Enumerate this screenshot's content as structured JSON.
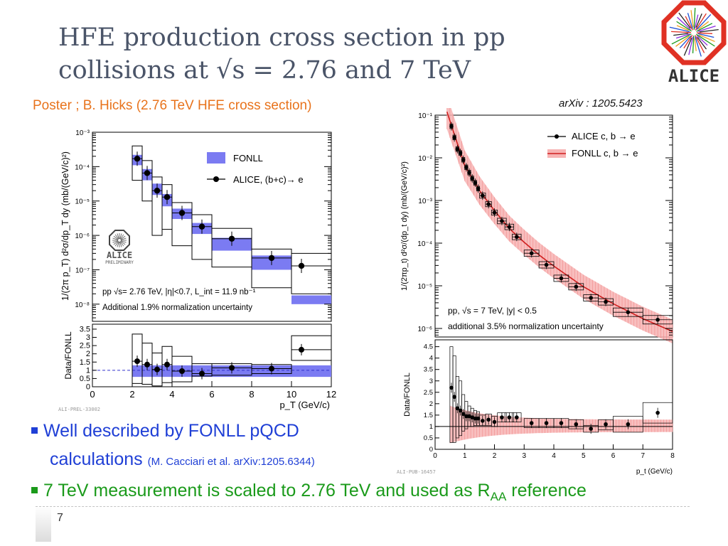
{
  "slide": {
    "title_line1": "HFE production cross section in pp",
    "title_line2": "collisions at √s = 2.76 and 7 TeV",
    "poster_credit": "Poster ; B. Hicks (2.76 TeV HFE cross section)",
    "arxiv_ref": "arXiv : 1205.5423",
    "logo_text": "ALICE",
    "bullets": [
      {
        "text": "Well described by FONLL pQCD",
        "text_cont": "calculations",
        "citation": "(M. Cacciari et al. arXiv:1205.6344)",
        "color": "#1f3fd6"
      },
      {
        "text": "7 TeV measurement is scaled to 2.76 TeV and used as R",
        "sub": "AA",
        "text_end": " reference",
        "color": "#1a9a1a"
      }
    ],
    "page_number": "7"
  },
  "chart_data": [
    {
      "type": "scatter",
      "id": "left-cross-section",
      "ylabel": "1/(2π p_T) d²σ/dp_T dy (mb/(GeV/c)²)",
      "xlim": [
        0,
        12
      ],
      "ylim_log10": [
        -8.5,
        -3
      ],
      "yticks": [
        "10⁻³",
        "10⁻⁴",
        "10⁻⁵",
        "10⁻⁶",
        "10⁻⁷",
        "10⁻⁸"
      ],
      "legend": [
        "FONLL",
        "ALICE, (b+c)→ e"
      ],
      "watermark": "ALICE",
      "watermark_sub": "PRELIMINARY",
      "annotation_1": "pp √s= 2.76 TeV, |η|<0.7, L_int = 11.9 nb⁻¹",
      "annotation_2": "Additional 1.9% normalization uncertainty",
      "series": [
        {
          "name": "ALICE, (b+c)→ e",
          "x": [
            2.25,
            2.75,
            3.25,
            3.75,
            4.5,
            5.5,
            7.0,
            9.0,
            12.0
          ],
          "x_low": [
            2.0,
            2.5,
            3.0,
            3.5,
            4.0,
            5.0,
            6.0,
            8.0,
            10.0
          ],
          "x_high": [
            2.5,
            3.0,
            3.5,
            4.0,
            5.0,
            6.0,
            8.0,
            10.0,
            14.0
          ],
          "y": [
            0.00017,
            6.5e-05,
            2e-05,
            1.3e-05,
            4.5e-06,
            1.8e-06,
            8e-07,
            2.2e-07,
            1.3e-07
          ],
          "sys_low": [
            4e-05,
            1e-05,
            1e-06,
            1.5e-06,
            5e-07,
            2e-07,
            1.2e-07,
            3e-08,
            2e-08
          ],
          "sys_high": [
            0.0004,
            0.00015,
            5e-05,
            3e-05,
            9e-06,
            4e-06,
            1.6e-06,
            4e-07,
            3e-07
          ],
          "fonll_low": [
            0.00011,
            4e-05,
            1.5e-05,
            7e-06,
            3e-06,
            1.1e-06,
            3.6e-07,
            1e-07,
            1e-08
          ],
          "fonll_high": [
            0.00022,
            8.5e-05,
            3.2e-05,
            1.6e-05,
            6e-06,
            2.3e-06,
            8.5e-07,
            2.6e-07,
            1.8e-08
          ]
        }
      ]
    },
    {
      "type": "scatter",
      "id": "left-ratio",
      "ylabel": "Data/FONLL",
      "xlabel": "p_T (GeV/c)",
      "xlim": [
        0,
        12
      ],
      "ylim": [
        0,
        3.8
      ],
      "xticks": [
        "0",
        "2",
        "4",
        "6",
        "8",
        "10",
        "12"
      ],
      "yticks": [
        "0",
        "0.5",
        "1",
        "1.5",
        "2",
        "2.5",
        "3",
        "3.5"
      ],
      "series": [
        {
          "name": "Data/FONLL",
          "x": [
            2.25,
            2.75,
            3.25,
            3.75,
            4.5,
            5.5,
            7.0,
            9.0,
            12.0
          ],
          "y": [
            1.55,
            1.35,
            1.05,
            1.35,
            0.95,
            0.8,
            1.15,
            1.1,
            2.25
          ],
          "sys_low": [
            0.2,
            0.15,
            0.05,
            0.25,
            0.3,
            0.65,
            0.7,
            0.8,
            1.6
          ],
          "sys_high": [
            3.2,
            2.65,
            2.05,
            2.45,
            1.85,
            1.4,
            1.4,
            1.35,
            3.1
          ],
          "x_low": [
            2.0,
            2.5,
            3.0,
            3.5,
            4.0,
            5.0,
            6.0,
            8.0,
            10.0
          ],
          "x_high": [
            2.5,
            3.0,
            3.5,
            4.0,
            5.0,
            6.0,
            8.0,
            10.0,
            14.0
          ],
          "band_low": 0.6,
          "band_high": 1.3,
          "ref": 1.0
        }
      ],
      "footer_tag": "ALI-PREL-33002"
    },
    {
      "type": "scatter",
      "id": "right-cross-section",
      "ylabel": "1/(2πp_t) d²σ/(dp_t dy) (mb/(GeV/c)²)",
      "xlim": [
        0,
        8
      ],
      "ylim_log10": [
        -6.2,
        -1
      ],
      "yticks": [
        "10⁻¹",
        "10⁻²",
        "10⁻³",
        "10⁻⁴",
        "10⁻⁵",
        "10⁻⁶"
      ],
      "legend": [
        "ALICE c, b → e",
        "FONLL c, b → e"
      ],
      "annotation_1": "pp, √s = 7 TeV, |y| < 0.5",
      "annotation_2": "additional 3.5% normalization uncertainty",
      "series": [
        {
          "name": "ALICE c, b → e",
          "x": [
            0.55,
            0.65,
            0.75,
            0.85,
            0.95,
            1.05,
            1.15,
            1.25,
            1.35,
            1.45,
            1.6,
            1.8,
            2.0,
            2.25,
            2.5,
            2.75,
            3.25,
            3.75,
            4.25,
            4.75,
            5.25,
            5.75,
            6.5,
            7.5
          ],
          "y": [
            0.055,
            0.03,
            0.016,
            0.013,
            0.009,
            0.006,
            0.0045,
            0.0033,
            0.0026,
            0.0019,
            0.0013,
            0.00082,
            0.00052,
            0.00033,
            0.00024,
            0.00014,
            5.8e-05,
            3.1e-05,
            1.5e-05,
            9.5e-06,
            5.2e-06,
            4.2e-06,
            2.4e-06,
            1.6e-06
          ],
          "width": [
            0.05,
            0.05,
            0.05,
            0.05,
            0.05,
            0.05,
            0.05,
            0.05,
            0.05,
            0.05,
            0.1,
            0.1,
            0.1,
            0.15,
            0.15,
            0.15,
            0.25,
            0.25,
            0.25,
            0.25,
            0.25,
            0.25,
            0.5,
            0.5
          ],
          "fonll_center_x": [
            0.4,
            0.6,
            1.0,
            1.5,
            2.0,
            2.5,
            3.0,
            3.5,
            4.0,
            5.0,
            6.0,
            7.0,
            8.0
          ],
          "fonll_center_y": [
            0.12,
            0.045,
            0.0065,
            0.0017,
            0.00058,
            0.00022,
            0.000105,
            5.3e-05,
            2.9e-05,
            9.5e-06,
            3.8e-06,
            1.7e-06,
            8.5e-07
          ]
        }
      ]
    },
    {
      "type": "scatter",
      "id": "right-ratio",
      "ylabel": "Data/FONLL",
      "xlabel": "p_t (GeV/c)",
      "xlim": [
        0,
        8
      ],
      "ylim": [
        0,
        4.8
      ],
      "xticks": [
        "0",
        "1",
        "2",
        "3",
        "4",
        "5",
        "6",
        "7",
        "8"
      ],
      "yticks": [
        "0",
        "0.5",
        "1",
        "1.5",
        "2",
        "2.5",
        "3",
        "3.5",
        "4",
        "4.5"
      ],
      "series": [
        {
          "name": "Data/FONLL",
          "x": [
            0.55,
            0.65,
            0.75,
            0.85,
            0.95,
            1.05,
            1.15,
            1.25,
            1.35,
            1.45,
            1.6,
            1.8,
            2.0,
            2.25,
            2.5,
            2.75,
            3.25,
            3.75,
            4.25,
            4.75,
            5.25,
            5.75,
            6.5,
            7.5
          ],
          "y": [
            2.7,
            2.3,
            1.8,
            1.7,
            1.55,
            1.45,
            1.45,
            1.4,
            1.35,
            1.35,
            1.25,
            1.3,
            1.2,
            1.4,
            1.4,
            1.4,
            1.15,
            1.15,
            1.15,
            1.1,
            0.9,
            1.1,
            1.1,
            1.6
          ],
          "width": [
            0.05,
            0.05,
            0.05,
            0.05,
            0.05,
            0.05,
            0.05,
            0.05,
            0.05,
            0.05,
            0.1,
            0.1,
            0.1,
            0.15,
            0.15,
            0.15,
            0.25,
            0.25,
            0.25,
            0.25,
            0.25,
            0.25,
            0.5,
            0.5
          ],
          "sys_low": [
            0.3,
            0.3,
            0.5,
            0.6,
            0.8,
            0.9,
            1.0,
            1.0,
            1.05,
            1.05,
            1.05,
            1.05,
            1.0,
            1.2,
            1.2,
            1.2,
            0.95,
            0.95,
            0.95,
            0.9,
            0.75,
            0.85,
            0.75,
            1.15
          ],
          "sys_high": [
            4.5,
            4.1,
            3.2,
            3.0,
            2.4,
            2.1,
            1.9,
            1.8,
            1.7,
            1.65,
            1.5,
            1.55,
            1.45,
            1.6,
            1.6,
            1.6,
            1.35,
            1.35,
            1.35,
            1.3,
            1.05,
            1.3,
            1.45,
            2.05
          ],
          "ref": 1.0
        }
      ],
      "footer_tag": "ALI-PUB-16457"
    }
  ]
}
